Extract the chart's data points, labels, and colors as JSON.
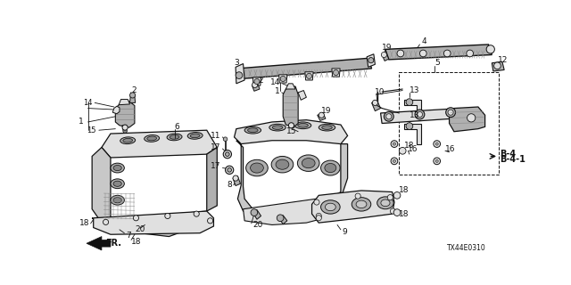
{
  "bg_color": "#ffffff",
  "diagram_code": "TX44E0310",
  "b4": "B-4",
  "b41": "B-4-1",
  "fr": "FR.",
  "lw_main": 1.0,
  "lw_thin": 0.6,
  "lw_thick": 1.4,
  "gray_fill": "#c8c8c8",
  "gray_mid": "#b0b0b0",
  "gray_dark": "#888888",
  "gray_light": "#e0e0e0",
  "line_color": "#111111"
}
